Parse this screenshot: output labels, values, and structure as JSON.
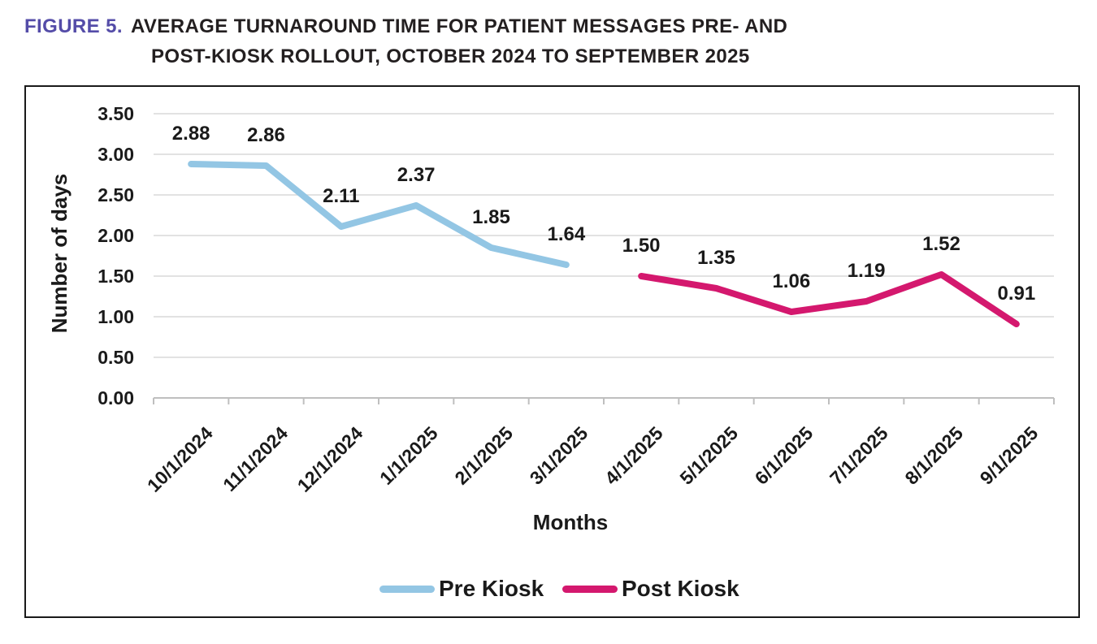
{
  "figure": {
    "label": "FIGURE 5.",
    "title_line1": "AVERAGE TURNAROUND TIME FOR PATIENT MESSAGES PRE- AND",
    "title_line2": "POST-KIOSK ROLLOUT, OCTOBER 2024 TO SEPTEMBER 2025",
    "label_color": "#544CA8"
  },
  "chart_data": {
    "type": "line",
    "title": "Average turnaround time for patient messages pre- and post-kiosk rollout",
    "categories": [
      "10/1/2024",
      "11/1/2024",
      "12/1/2024",
      "1/1/2025",
      "2/1/2025",
      "3/1/2025",
      "4/1/2025",
      "5/1/2025",
      "6/1/2025",
      "7/1/2025",
      "8/1/2025",
      "9/1/2025"
    ],
    "series": [
      {
        "name": "Pre Kiosk",
        "color": "#93C6E4",
        "values": [
          2.88,
          2.86,
          2.11,
          2.37,
          1.85,
          1.64,
          null,
          null,
          null,
          null,
          null,
          null
        ]
      },
      {
        "name": "Post Kiosk",
        "color": "#D4186E",
        "values": [
          null,
          null,
          null,
          null,
          null,
          null,
          1.5,
          1.35,
          1.06,
          1.19,
          1.52,
          0.91
        ]
      }
    ],
    "data_labels": [
      "2.88",
      "2.86",
      "2.11",
      "2.37",
      "1.85",
      "1.64",
      "1.50",
      "1.35",
      "1.06",
      "1.19",
      "1.52",
      "0.91"
    ],
    "xlabel": "Months",
    "ylabel": "Number of days",
    "ylim": [
      0,
      3.5
    ],
    "ytick_step": 0.5,
    "ytick_labels": [
      "0.00",
      "0.50",
      "1.00",
      "1.50",
      "2.00",
      "2.50",
      "3.00",
      "3.50"
    ],
    "grid": true,
    "legend_position": "bottom",
    "colors": {
      "gridline": "#D9D9D9",
      "axis_line": "#BFBFBF",
      "text": "#1a1a1a"
    }
  }
}
